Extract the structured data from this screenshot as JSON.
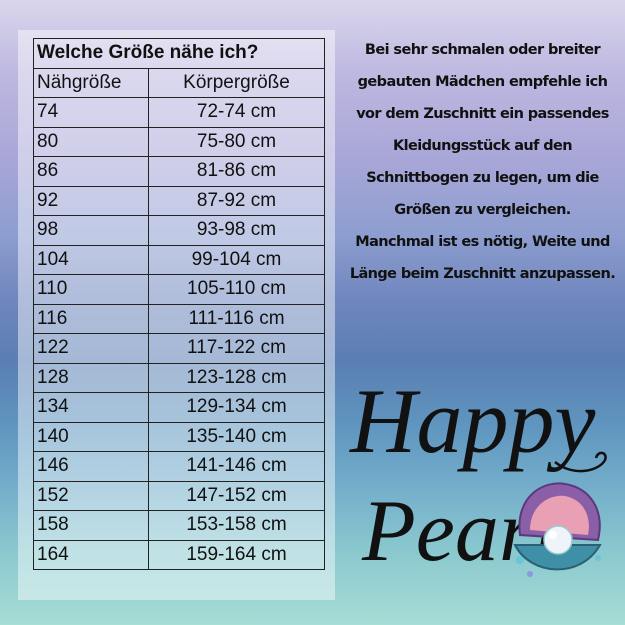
{
  "table": {
    "title": "Welche Größe nähe ich?",
    "header": [
      "Nähgröße",
      "Körpergröße"
    ],
    "rows": [
      [
        "74",
        "72-74 cm"
      ],
      [
        "80",
        "75-80 cm"
      ],
      [
        "86",
        "81-86 cm"
      ],
      [
        "92",
        "87-92 cm"
      ],
      [
        "98",
        "93-98 cm"
      ],
      [
        "104",
        "99-104 cm"
      ],
      [
        "110",
        "105-110 cm"
      ],
      [
        "116",
        "111-116 cm"
      ],
      [
        "122",
        "117-122 cm"
      ],
      [
        "128",
        "123-128 cm"
      ],
      [
        "134",
        "129-134 cm"
      ],
      [
        "140",
        "135-140 cm"
      ],
      [
        "146",
        "141-146 cm"
      ],
      [
        "152",
        "147-152 cm"
      ],
      [
        "158",
        "153-158 cm"
      ],
      [
        "164",
        "159-164 cm"
      ]
    ]
  },
  "note": {
    "lines": [
      "Bei sehr schmalen oder breiter",
      "gebauten Mädchen empfehle ich",
      "vor dem Zuschnitt ein passendes",
      "Kleidungsstück auf den",
      "Schnittbogen zu legen, um die",
      "Größen zu vergleichen.",
      "Manchmal ist es nötig, Weite und",
      "Länge beim Zuschnitt anzupassen."
    ]
  },
  "logo": {
    "line1": "Happy",
    "line2": "Pearl"
  }
}
